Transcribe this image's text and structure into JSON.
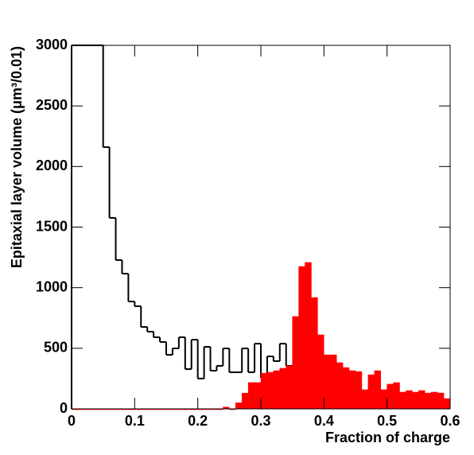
{
  "chart_data": {
    "type": "histogram",
    "x_label": "Fraction of charge",
    "y_label": "Epitaxial layer volume (μm³/0.01)",
    "bins": [
      0,
      0.01,
      0.02,
      0.03,
      0.04,
      0.05,
      0.06,
      0.07,
      0.08,
      0.09,
      0.1,
      0.11,
      0.12,
      0.13,
      0.14,
      0.15,
      0.16,
      0.17,
      0.18,
      0.19,
      0.2,
      0.21,
      0.22,
      0.23,
      0.24,
      0.25,
      0.26,
      0.27,
      0.28,
      0.29,
      0.3,
      0.31,
      0.32,
      0.33,
      0.34,
      0.35,
      0.36,
      0.37,
      0.38,
      0.39,
      0.4,
      0.41,
      0.42,
      0.43,
      0.44,
      0.45,
      0.46,
      0.47,
      0.48,
      0.49,
      0.5,
      0.51,
      0.52,
      0.53,
      0.54,
      0.55,
      0.56,
      0.57,
      0.58,
      0.59,
      0.6
    ],
    "series": [
      {
        "color": "#000000",
        "filled": false,
        "values": [
          3000,
          3000,
          3000,
          3000,
          3000,
          2160,
          1576,
          1228,
          1116,
          886,
          847,
          676,
          637,
          591,
          552,
          446,
          499,
          591,
          328,
          571,
          250,
          512,
          315,
          355,
          499,
          302,
          302,
          499,
          302,
          538,
          256,
          433,
          394,
          538,
          355,
          null,
          null,
          null,
          null,
          null,
          null,
          null,
          null,
          null,
          null,
          null,
          null,
          null,
          null,
          null,
          null,
          null,
          null,
          null,
          null,
          null,
          null,
          null,
          null,
          null
        ]
      },
      {
        "color": "#ff0000",
        "filled": true,
        "values": [
          0,
          0,
          0,
          0,
          0,
          0,
          0,
          0,
          0,
          0,
          0,
          0,
          0,
          0,
          0,
          0,
          0,
          0,
          0,
          0,
          0,
          0,
          0,
          0,
          15,
          0,
          50,
          130,
          217,
          217,
          295,
          302,
          315,
          335,
          355,
          762,
          1175,
          1208,
          919,
          611,
          446,
          446,
          381,
          341,
          315,
          308,
          158,
          282,
          315,
          158,
          204,
          217,
          138,
          151,
          138,
          151,
          131,
          138,
          131,
          85
        ]
      }
    ],
    "xlim": [
      0,
      0.6
    ],
    "xticks": [
      0,
      0.1,
      0.2,
      0.3,
      0.4,
      0.5,
      0.6
    ],
    "ylim": [
      0,
      3000
    ],
    "yticks": [
      0,
      500,
      1000,
      1500,
      2000,
      2500,
      3000
    ]
  }
}
